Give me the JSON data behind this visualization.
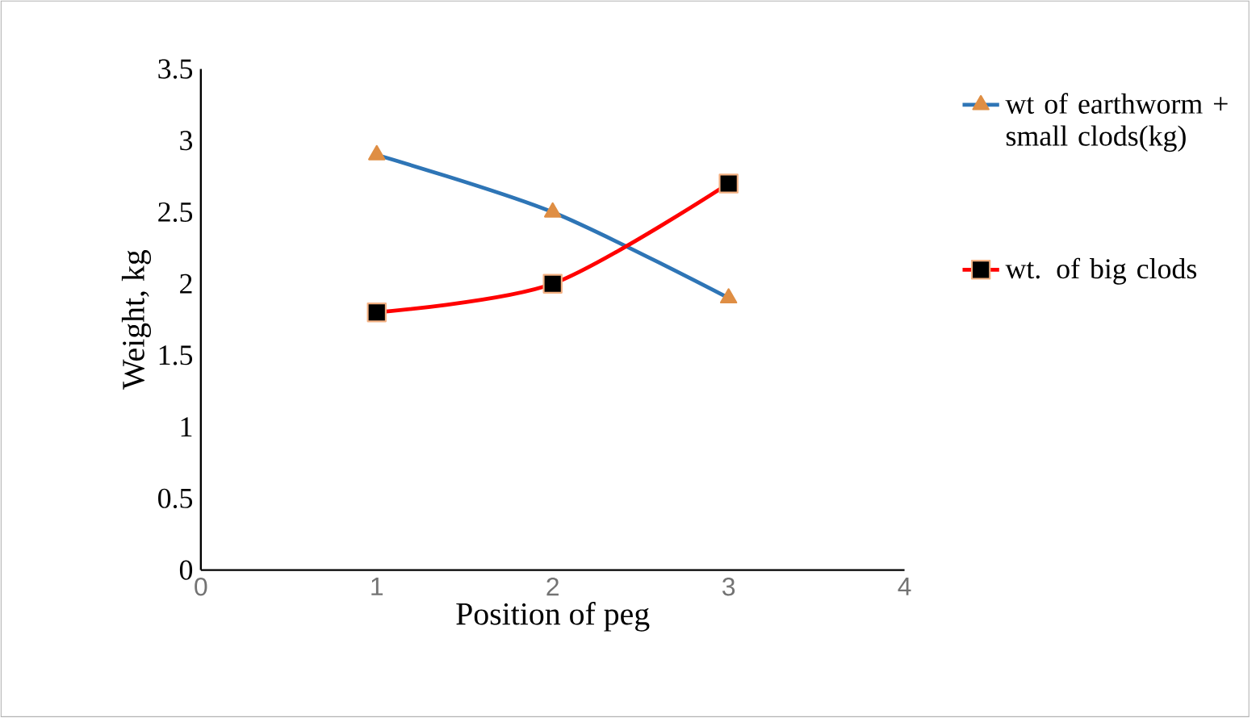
{
  "chart_data": {
    "type": "line",
    "xlabel": "Position of peg",
    "ylabel": "Weight, kg",
    "x": [
      1,
      2,
      3
    ],
    "series": [
      {
        "name": "wt of earthworm + small clods(kg)",
        "color": "#2e75b6",
        "marker": "triangle",
        "values": [
          2.9,
          2.5,
          1.9
        ]
      },
      {
        "name": "wt. of big clods",
        "color": "#ff0000",
        "marker": "square",
        "values": [
          1.8,
          2.0,
          2.7
        ]
      }
    ],
    "xlim": [
      0,
      4
    ],
    "xticks": [
      0,
      1,
      2,
      3,
      4
    ],
    "ylim": [
      0,
      3.5
    ],
    "yticks": [
      0,
      0.5,
      1,
      1.5,
      2,
      2.5,
      3,
      3.5
    ],
    "grid": false,
    "legend": "right"
  }
}
